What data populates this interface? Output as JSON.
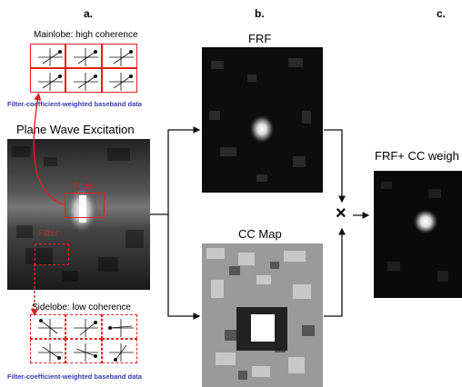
{
  "panels": {
    "a": "a.",
    "b": "b.",
    "c": "c."
  },
  "mainlobe_caption": "Mainlobe: high coherence",
  "sidelobe_caption": "Sidelobe: low coherence",
  "baseband_caption_top": "Filter-coefficient-weighted baseband data",
  "baseband_caption_bottom": "Filter-coefficient-weighted baseband data",
  "pwe_title": "Plane Wave Excitation",
  "filter_label_main": "Filter",
  "filter_label_side": "Filter",
  "frf_title": "FRF",
  "ccmap_title": "CC Map",
  "multiply_symbol": "×",
  "result_title": "FRF+ CC weigh",
  "colors": {
    "red": "#e02020",
    "blue": "#3a3ab0",
    "dark": "#111111"
  }
}
